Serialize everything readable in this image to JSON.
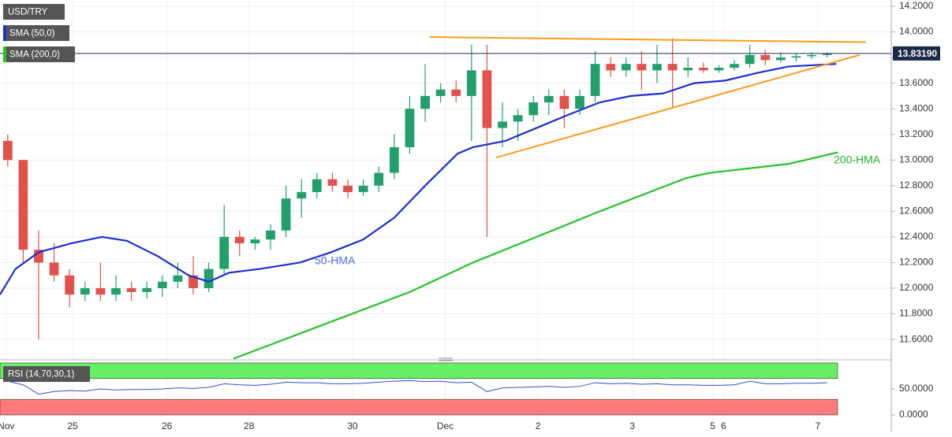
{
  "chart_data": [
    {
      "type": "candlestick",
      "title": "USD/TRY",
      "open": [
        13.15,
        13.0,
        12.3,
        12.2,
        12.1,
        11.95,
        12.0,
        11.95,
        12.0,
        11.97,
        12.0,
        12.05,
        12.1,
        12.0,
        12.15,
        12.4,
        12.35,
        12.38,
        12.45,
        12.7,
        12.75,
        12.85,
        12.8,
        12.75,
        12.8,
        12.9,
        13.1,
        13.4,
        13.5,
        13.55,
        13.5,
        13.7,
        13.25,
        13.3,
        13.35,
        13.45,
        13.5,
        13.4,
        13.5,
        13.75,
        13.7,
        13.75,
        13.7,
        13.75,
        13.7,
        13.72,
        13.7,
        13.72,
        13.75,
        13.82,
        13.78,
        13.8,
        13.81,
        13.82
      ],
      "high": [
        13.2,
        13.0,
        12.45,
        12.35,
        12.15,
        12.05,
        12.2,
        12.1,
        12.05,
        12.05,
        12.1,
        12.2,
        12.25,
        12.2,
        12.65,
        12.45,
        12.4,
        12.5,
        12.8,
        12.85,
        12.9,
        12.9,
        12.85,
        12.85,
        12.95,
        13.2,
        13.5,
        13.75,
        13.6,
        13.62,
        13.9,
        13.9,
        13.45,
        13.4,
        13.5,
        13.55,
        13.55,
        13.55,
        13.85,
        13.8,
        13.8,
        13.85,
        13.9,
        13.95,
        13.8,
        13.76,
        13.74,
        13.78,
        13.9,
        13.86,
        13.84,
        13.83,
        13.84,
        13.84
      ],
      "low": [
        12.95,
        12.2,
        11.6,
        12.05,
        11.85,
        11.9,
        11.9,
        11.9,
        11.9,
        11.92,
        11.93,
        12.0,
        11.95,
        11.97,
        12.1,
        12.25,
        12.3,
        12.3,
        12.4,
        12.55,
        12.7,
        12.75,
        12.7,
        12.72,
        12.75,
        12.85,
        13.05,
        13.3,
        13.45,
        13.45,
        13.15,
        12.4,
        13.1,
        13.15,
        13.3,
        13.35,
        13.25,
        13.35,
        13.45,
        13.65,
        13.65,
        13.55,
        13.6,
        13.4,
        13.65,
        13.68,
        13.68,
        13.7,
        13.72,
        13.74,
        13.76,
        13.77,
        13.79,
        13.8
      ],
      "close": [
        13.0,
        12.3,
        12.2,
        12.1,
        11.95,
        12.0,
        11.95,
        12.0,
        11.97,
        12.0,
        12.05,
        12.1,
        12.0,
        12.15,
        12.4,
        12.35,
        12.38,
        12.45,
        12.7,
        12.75,
        12.85,
        12.8,
        12.75,
        12.8,
        12.9,
        13.1,
        13.4,
        13.5,
        13.55,
        13.5,
        13.7,
        13.25,
        13.3,
        13.35,
        13.45,
        13.5,
        13.4,
        13.5,
        13.75,
        13.7,
        13.75,
        13.7,
        13.75,
        13.7,
        13.72,
        13.7,
        13.72,
        13.75,
        13.82,
        13.78,
        13.8,
        13.81,
        13.82,
        13.83
      ],
      "up_color": "#22a06b",
      "down_color": "#e0524a",
      "series": [
        {
          "name": "SMA (50,0)",
          "color": "#1a2fd8",
          "x": [
            -0.5,
            0.5,
            2,
            4.1,
            6.1,
            7.7,
            9.7,
            11.7,
            13,
            14.3,
            16.3,
            18.9,
            20.9,
            23,
            25,
            27,
            29.1,
            30.1,
            32.2,
            34.2,
            36.2,
            38.3,
            40.3,
            42.4,
            44.4,
            46.4,
            48.5,
            50.5,
            53.6
          ],
          "values": [
            11.95,
            12.15,
            12.28,
            12.35,
            12.4,
            12.37,
            12.25,
            12.1,
            12.05,
            12.12,
            12.15,
            12.2,
            12.28,
            12.38,
            12.55,
            12.8,
            13.05,
            13.1,
            13.15,
            13.25,
            13.35,
            13.45,
            13.5,
            13.52,
            13.6,
            13.62,
            13.68,
            13.73,
            13.75
          ]
        },
        {
          "name": "SMA (200,0)",
          "color": "#22c422",
          "x": [
            14.6,
            26.0,
            30.1,
            38.3,
            43.9,
            45.4,
            50.5,
            53.7
          ],
          "values": [
            11.45,
            11.97,
            12.2,
            12.6,
            12.86,
            12.9,
            12.97,
            13.06
          ]
        }
      ],
      "trendlines": [
        {
          "color": "#ff9a1a",
          "x": [
            27.3,
            55.5
          ],
          "values": [
            13.96,
            13.92
          ]
        },
        {
          "color": "#ff9a1a",
          "x": [
            31.6,
            55.1
          ],
          "values": [
            13.02,
            13.82
          ]
        }
      ],
      "annotations": [
        "50-HMA",
        "200-HMA"
      ],
      "last_price": 13.8319,
      "last_price_label": "13.83190",
      "xlim": [
        -0.5,
        57.15
      ],
      "xticks": [
        {
          "value": -0.1,
          "label": "Nov"
        },
        {
          "value": 4.2,
          "label": "25"
        },
        {
          "value": 10.3,
          "label": "26"
        },
        {
          "value": 15.6,
          "label": "28"
        },
        {
          "value": 22.3,
          "label": "30"
        },
        {
          "value": 28.3,
          "label": "Dec"
        },
        {
          "value": 34.3,
          "label": "2"
        },
        {
          "value": 40.4,
          "label": "3"
        },
        {
          "value": 45.6,
          "label": "5"
        },
        {
          "value": 46.3,
          "label": "6"
        },
        {
          "value": 52.4,
          "label": "7"
        }
      ],
      "ylim": [
        11.453,
        14.249
      ],
      "yticks": [
        {
          "value": 11.6,
          "label": "11.6000"
        },
        {
          "value": 11.8,
          "label": "11.8000"
        },
        {
          "value": 12.0,
          "label": "12.0000"
        },
        {
          "value": 12.2,
          "label": "12.2000"
        },
        {
          "value": 12.4,
          "label": "12.4000"
        },
        {
          "value": 12.6,
          "label": "12.6000"
        },
        {
          "value": 12.8,
          "label": "12.8000"
        },
        {
          "value": 13.0,
          "label": "13.0000"
        },
        {
          "value": 13.2,
          "label": "13.2000"
        },
        {
          "value": 13.4,
          "label": "13.4000"
        },
        {
          "value": 13.6,
          "label": "13.6000"
        },
        {
          "value": 13.8,
          "label": "13.8000"
        },
        {
          "value": 14.0,
          "label": "14.0000"
        },
        {
          "value": 14.2,
          "label": "14.2000"
        }
      ],
      "grid": true
    },
    {
      "type": "line",
      "title": "RSI (14,70,30,1)",
      "color": "#3050d0",
      "values": [
        65,
        58,
        40,
        45,
        47,
        46,
        50,
        48,
        49,
        49,
        50,
        52,
        51,
        53,
        60,
        58,
        57,
        59,
        63,
        62,
        62,
        60,
        60,
        61,
        63,
        65,
        66,
        64,
        65,
        62,
        63,
        45,
        52,
        53,
        54,
        55,
        53,
        55,
        62,
        60,
        61,
        59,
        60,
        58,
        58,
        57,
        57,
        58,
        65,
        60,
        60,
        61,
        61,
        62
      ],
      "bands": [
        {
          "from": 70,
          "to": 100,
          "color": "#66ee66"
        },
        {
          "from": 0,
          "to": 30,
          "color": "#ff7b7b"
        }
      ],
      "ylim": [
        -27.3,
        101.5
      ],
      "yticks": [
        {
          "value": 50,
          "label": "50.0000"
        },
        {
          "value": 0,
          "label": "0.0000"
        }
      ]
    }
  ]
}
